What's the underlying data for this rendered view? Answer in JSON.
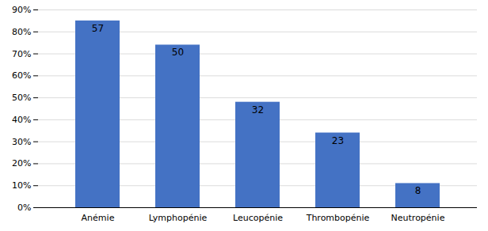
{
  "chart_data": {
    "type": "bar",
    "categories": [
      "Anémie",
      "Lymphopénie",
      "Leucopénie",
      "Thrombopénie",
      "Neutropénie"
    ],
    "values": [
      85,
      74,
      48,
      34,
      11
    ],
    "counts": [
      57,
      50,
      32,
      23,
      8
    ],
    "color": "#4472C4",
    "ylim": [
      0,
      90
    ],
    "yticks": [
      {
        "value": 0,
        "label": "0%"
      },
      {
        "value": 10,
        "label": "10%"
      },
      {
        "value": 20,
        "label": "20%"
      },
      {
        "value": 30,
        "label": "30%"
      },
      {
        "value": 40,
        "label": "40%"
      },
      {
        "value": 50,
        "label": "50%"
      },
      {
        "value": 60,
        "label": "60%"
      },
      {
        "value": 70,
        "label": "70%"
      },
      {
        "value": 80,
        "label": "80%"
      },
      {
        "value": 90,
        "label": "90%"
      }
    ],
    "grid": true
  }
}
